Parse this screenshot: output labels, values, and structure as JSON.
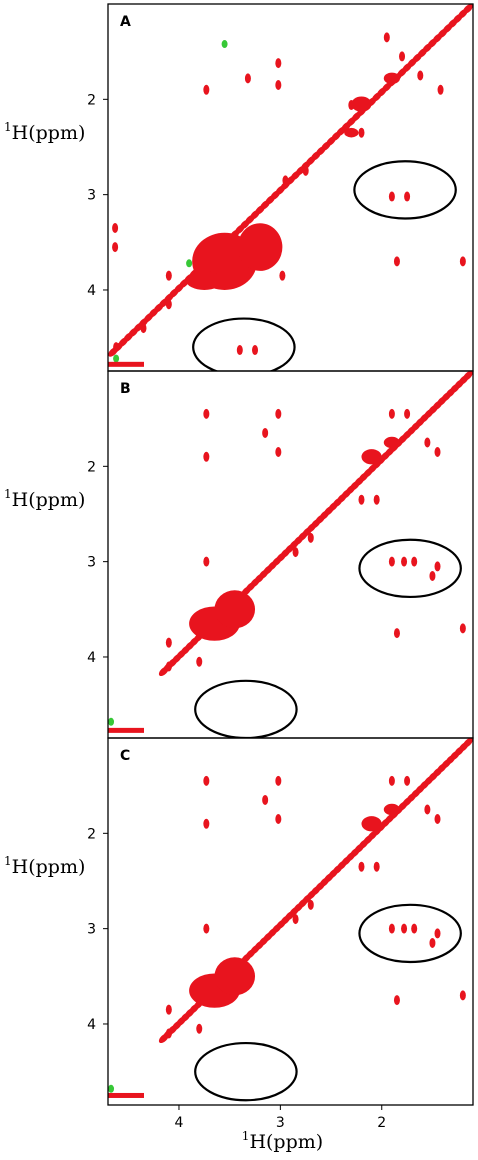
{
  "colors": {
    "peak": "#e8141e",
    "negative": "#37c837",
    "frame": "#000000",
    "background": "#ffffff"
  },
  "x_axis_label": {
    "superscript": "1",
    "text": "H(ppm)"
  },
  "chart_data": [
    {
      "type": "scatter",
      "panel_label": "A",
      "description_series": "2D 1H-1H NMR spectrum contour peaks",
      "ylabel": {
        "superscript": "1",
        "text": "H(ppm)"
      },
      "xlim": [
        4.7,
        1.1
      ],
      "ylim": [
        4.85,
        1.0
      ],
      "x_ticks": [
        4,
        3,
        2
      ],
      "y_ticks": [
        2,
        3,
        4
      ],
      "diagonal": {
        "from": [
          4.65,
          4.65
        ],
        "to": [
          1.15,
          1.05
        ]
      },
      "blobs": [
        {
          "x": 3.55,
          "y": 3.7,
          "rx": 0.32,
          "ry": 0.3
        },
        {
          "x": 3.2,
          "y": 3.55,
          "rx": 0.22,
          "ry": 0.25
        },
        {
          "x": 3.75,
          "y": 3.9,
          "rx": 0.18,
          "ry": 0.1
        },
        {
          "x": 2.2,
          "y": 2.05,
          "rx": 0.1,
          "ry": 0.08
        },
        {
          "x": 2.3,
          "y": 2.35,
          "rx": 0.07,
          "ry": 0.05
        },
        {
          "x": 1.9,
          "y": 1.78,
          "rx": 0.08,
          "ry": 0.06
        }
      ],
      "peaks": [
        {
          "x": 4.63,
          "y": 3.35
        },
        {
          "x": 4.63,
          "y": 3.55
        },
        {
          "x": 4.62,
          "y": 4.6
        },
        {
          "x": 3.73,
          "y": 1.9
        },
        {
          "x": 3.32,
          "y": 1.78
        },
        {
          "x": 3.02,
          "y": 1.85
        },
        {
          "x": 3.02,
          "y": 1.62
        },
        {
          "x": 4.35,
          "y": 4.4
        },
        {
          "x": 4.1,
          "y": 4.15
        },
        {
          "x": 4.1,
          "y": 3.85
        },
        {
          "x": 2.95,
          "y": 2.85
        },
        {
          "x": 2.75,
          "y": 2.75
        },
        {
          "x": 2.3,
          "y": 2.06
        },
        {
          "x": 2.2,
          "y": 2.35
        },
        {
          "x": 1.95,
          "y": 1.35
        },
        {
          "x": 1.8,
          "y": 1.55
        },
        {
          "x": 1.62,
          "y": 1.75
        },
        {
          "x": 1.42,
          "y": 1.9
        },
        {
          "x": 2.98,
          "y": 3.85
        },
        {
          "x": 1.85,
          "y": 3.7
        },
        {
          "x": 1.2,
          "y": 3.7
        },
        {
          "x": 3.4,
          "y": 4.63
        },
        {
          "x": 3.25,
          "y": 4.63
        },
        {
          "x": 1.9,
          "y": 3.02
        },
        {
          "x": 1.75,
          "y": 3.02
        }
      ],
      "green_peaks": [
        {
          "x": 4.62,
          "y": 4.72
        },
        {
          "x": 3.55,
          "y": 1.42
        },
        {
          "x": 3.9,
          "y": 3.72
        }
      ],
      "ellipses": [
        {
          "cx": 3.36,
          "cy": 4.6,
          "rx": 0.5,
          "ry": 0.3
        },
        {
          "cx": 1.77,
          "cy": 2.95,
          "rx": 0.5,
          "ry": 0.3
        }
      ],
      "edge_streak": {
        "y": 4.78
      }
    },
    {
      "type": "scatter",
      "panel_label": "B",
      "ylabel": {
        "superscript": "1",
        "text": "H(ppm)"
      },
      "xlim": [
        4.7,
        1.1
      ],
      "ylim": [
        4.85,
        1.0
      ],
      "x_ticks": [
        4,
        3,
        2
      ],
      "y_ticks": [
        2,
        3,
        4
      ],
      "diagonal": {
        "from": [
          4.15,
          4.15
        ],
        "to": [
          1.15,
          1.05
        ]
      },
      "blobs": [
        {
          "x": 3.65,
          "y": 3.65,
          "rx": 0.25,
          "ry": 0.18
        },
        {
          "x": 3.45,
          "y": 3.5,
          "rx": 0.2,
          "ry": 0.2
        },
        {
          "x": 2.1,
          "y": 1.9,
          "rx": 0.1,
          "ry": 0.08
        },
        {
          "x": 1.9,
          "y": 1.75,
          "rx": 0.08,
          "ry": 0.06
        }
      ],
      "peaks": [
        {
          "x": 3.73,
          "y": 1.45
        },
        {
          "x": 3.73,
          "y": 1.9
        },
        {
          "x": 3.02,
          "y": 1.45
        },
        {
          "x": 3.02,
          "y": 1.85
        },
        {
          "x": 3.15,
          "y": 1.65
        },
        {
          "x": 4.1,
          "y": 3.85
        },
        {
          "x": 4.1,
          "y": 4.1
        },
        {
          "x": 3.8,
          "y": 4.05
        },
        {
          "x": 3.73,
          "y": 3.0
        },
        {
          "x": 2.85,
          "y": 2.9
        },
        {
          "x": 2.7,
          "y": 2.75
        },
        {
          "x": 2.2,
          "y": 2.35
        },
        {
          "x": 2.05,
          "y": 2.35
        },
        {
          "x": 1.9,
          "y": 1.45
        },
        {
          "x": 1.75,
          "y": 1.45
        },
        {
          "x": 1.55,
          "y": 1.75
        },
        {
          "x": 1.45,
          "y": 1.85
        },
        {
          "x": 1.9,
          "y": 3.0
        },
        {
          "x": 1.78,
          "y": 3.0
        },
        {
          "x": 1.68,
          "y": 3.0
        },
        {
          "x": 1.5,
          "y": 3.15
        },
        {
          "x": 1.45,
          "y": 3.05
        },
        {
          "x": 1.85,
          "y": 3.75
        },
        {
          "x": 1.2,
          "y": 3.7
        }
      ],
      "green_peaks": [
        {
          "x": 4.67,
          "y": 4.68
        }
      ],
      "ellipses": [
        {
          "cx": 3.34,
          "cy": 4.55,
          "rx": 0.5,
          "ry": 0.3
        },
        {
          "cx": 1.72,
          "cy": 3.07,
          "rx": 0.5,
          "ry": 0.3
        }
      ],
      "edge_streak": {
        "y": 4.77
      }
    },
    {
      "type": "scatter",
      "panel_label": "C",
      "ylabel": {
        "superscript": "1",
        "text": "H(ppm)"
      },
      "xlim": [
        4.7,
        1.1
      ],
      "ylim": [
        4.85,
        1.0
      ],
      "x_ticks": [
        4,
        3,
        2
      ],
      "y_ticks": [
        2,
        3,
        4
      ],
      "diagonal": {
        "from": [
          4.15,
          4.15
        ],
        "to": [
          1.15,
          1.05
        ]
      },
      "blobs": [
        {
          "x": 3.65,
          "y": 3.65,
          "rx": 0.25,
          "ry": 0.18
        },
        {
          "x": 3.45,
          "y": 3.5,
          "rx": 0.2,
          "ry": 0.2
        },
        {
          "x": 2.1,
          "y": 1.9,
          "rx": 0.1,
          "ry": 0.08
        },
        {
          "x": 1.9,
          "y": 1.75,
          "rx": 0.08,
          "ry": 0.06
        }
      ],
      "peaks": [
        {
          "x": 3.73,
          "y": 1.45
        },
        {
          "x": 3.73,
          "y": 1.9
        },
        {
          "x": 3.02,
          "y": 1.45
        },
        {
          "x": 3.02,
          "y": 1.85
        },
        {
          "x": 3.15,
          "y": 1.65
        },
        {
          "x": 4.1,
          "y": 3.85
        },
        {
          "x": 4.1,
          "y": 4.1
        },
        {
          "x": 3.8,
          "y": 4.05
        },
        {
          "x": 3.73,
          "y": 3.0
        },
        {
          "x": 2.85,
          "y": 2.9
        },
        {
          "x": 2.7,
          "y": 2.75
        },
        {
          "x": 2.2,
          "y": 2.35
        },
        {
          "x": 2.05,
          "y": 2.35
        },
        {
          "x": 1.9,
          "y": 1.45
        },
        {
          "x": 1.75,
          "y": 1.45
        },
        {
          "x": 1.55,
          "y": 1.75
        },
        {
          "x": 1.45,
          "y": 1.85
        },
        {
          "x": 1.9,
          "y": 3.0
        },
        {
          "x": 1.78,
          "y": 3.0
        },
        {
          "x": 1.68,
          "y": 3.0
        },
        {
          "x": 1.5,
          "y": 3.15
        },
        {
          "x": 1.45,
          "y": 3.05
        },
        {
          "x": 1.85,
          "y": 3.75
        },
        {
          "x": 1.2,
          "y": 3.7
        }
      ],
      "green_peaks": [
        {
          "x": 4.67,
          "y": 4.68
        }
      ],
      "ellipses": [
        {
          "cx": 3.34,
          "cy": 4.5,
          "rx": 0.5,
          "ry": 0.3
        },
        {
          "cx": 1.72,
          "cy": 3.05,
          "rx": 0.5,
          "ry": 0.3
        }
      ],
      "edge_streak": {
        "y": 4.75
      }
    }
  ]
}
